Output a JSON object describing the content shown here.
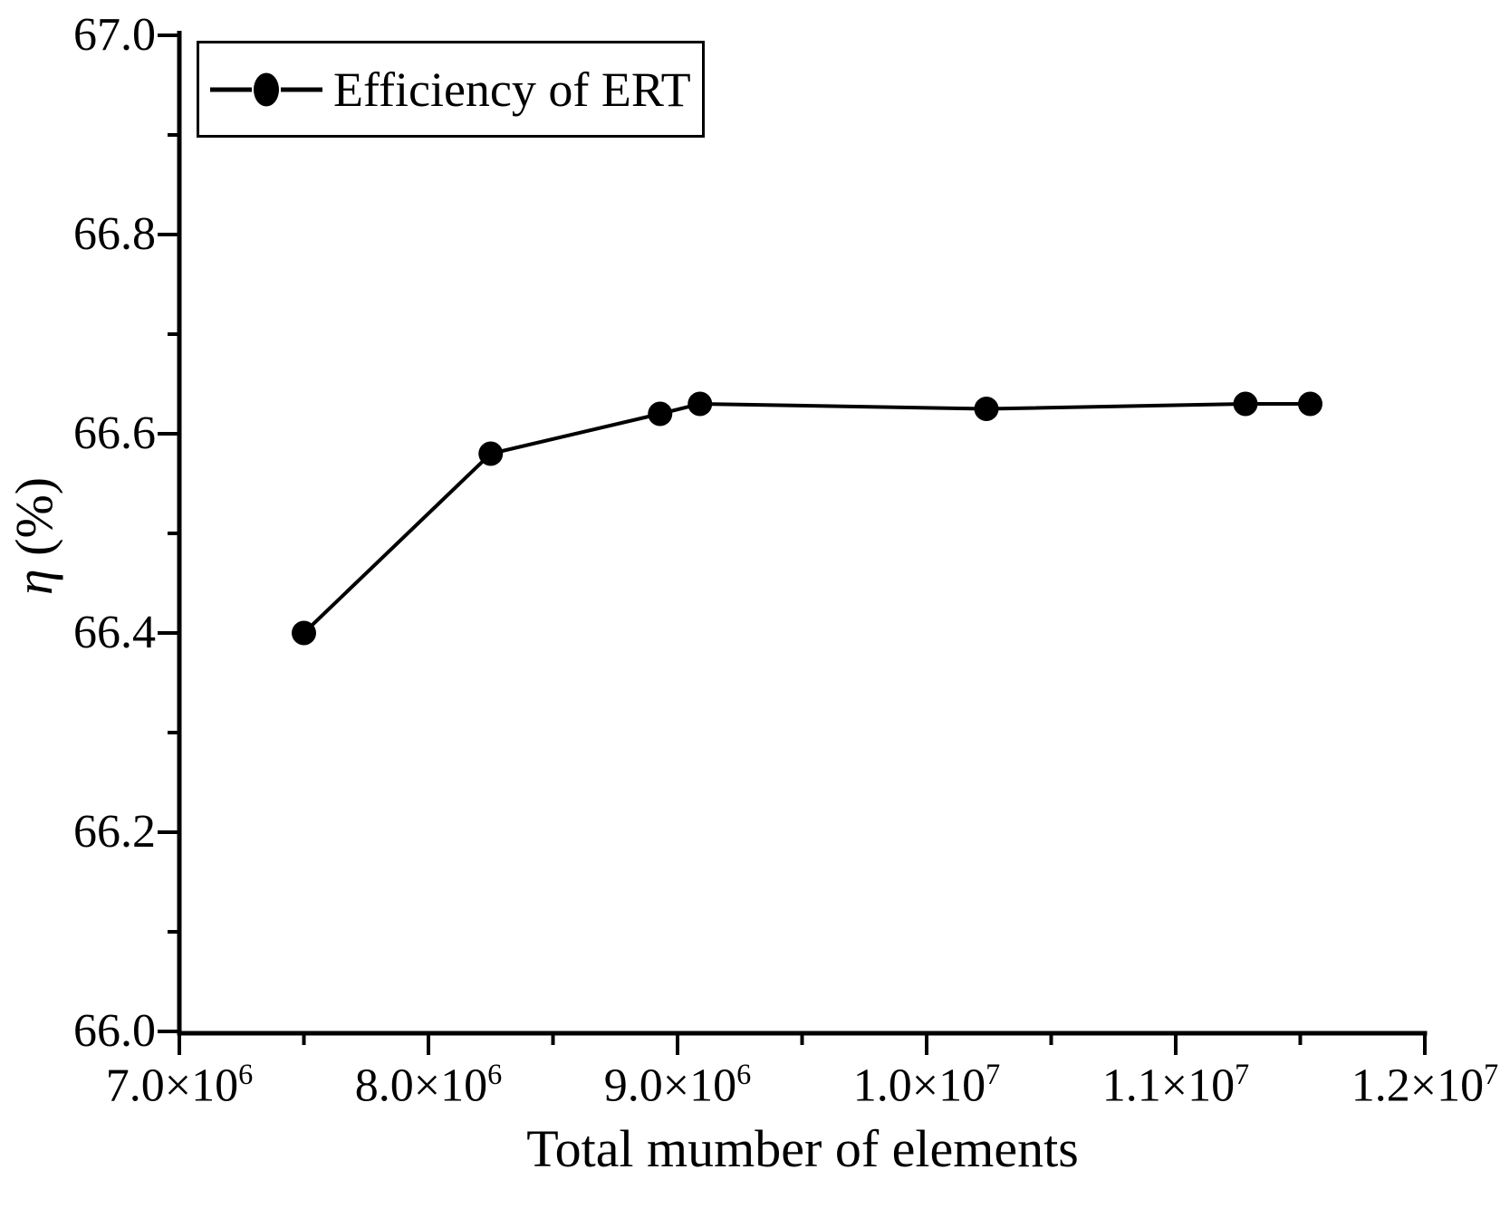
{
  "figure": {
    "background": "#ffffff",
    "ink_color": "#000000"
  },
  "legend": {
    "label": "Efficiency of ERT",
    "position": "top-left",
    "marker": "filled-circle-with-line"
  },
  "axes": {
    "x_title": "Total mumber of elements",
    "y_title_symbol": "η",
    "y_title_units": "(%)"
  },
  "chart_data": {
    "type": "line",
    "title": "",
    "xlabel": "Total mumber of elements",
    "ylabel": "η (%)",
    "legend_entries": [
      "Efficiency of ERT"
    ],
    "legend_position": "top-left",
    "grid": false,
    "xlim": [
      7000000,
      12000000
    ],
    "ylim": [
      66.0,
      67.0
    ],
    "x_major_ticks": [
      {
        "value": 7000000,
        "mantissa": "7.0×10",
        "exponent": "6"
      },
      {
        "value": 8000000,
        "mantissa": "8.0×10",
        "exponent": "6"
      },
      {
        "value": 9000000,
        "mantissa": "9.0×10",
        "exponent": "6"
      },
      {
        "value": 10000000,
        "mantissa": "1.0×10",
        "exponent": "7"
      },
      {
        "value": 11000000,
        "mantissa": "1.1×10",
        "exponent": "7"
      },
      {
        "value": 12000000,
        "mantissa": "1.2×10",
        "exponent": "7"
      }
    ],
    "x_minor_ticks": [
      7500000,
      8500000,
      9500000,
      10500000,
      11500000
    ],
    "y_major_ticks": [
      {
        "value": 66.0,
        "label": "66.0"
      },
      {
        "value": 66.2,
        "label": "66.2"
      },
      {
        "value": 66.4,
        "label": "66.4"
      },
      {
        "value": 66.6,
        "label": "66.6"
      },
      {
        "value": 66.8,
        "label": "66.8"
      },
      {
        "value": 67.0,
        "label": "67.0"
      }
    ],
    "y_minor_ticks": [
      66.1,
      66.3,
      66.5,
      66.7,
      66.9
    ],
    "series": [
      {
        "name": "Efficiency of ERT",
        "color": "#000000",
        "marker": "filled-circle",
        "x": [
          7500000,
          8250000,
          8930000,
          9090000,
          10240000,
          11280000,
          11540000
        ],
        "y": [
          66.4,
          66.58,
          66.62,
          66.63,
          66.625,
          66.63,
          66.63
        ]
      }
    ]
  }
}
